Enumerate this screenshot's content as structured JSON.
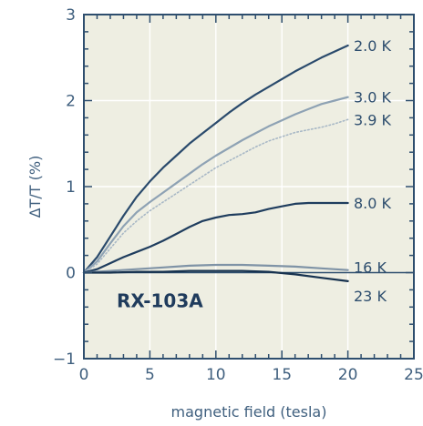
{
  "chart_data": {
    "type": "line",
    "title": "",
    "xlabel": "magnetic field (tesla)",
    "ylabel": "ΔT/T (%)",
    "xlim": [
      0,
      25
    ],
    "ylim": [
      -1,
      3
    ],
    "xticks": [
      0,
      5,
      10,
      15,
      20,
      25
    ],
    "yticks": [
      -1,
      0,
      1,
      2,
      3
    ],
    "grid": true,
    "annotation": "RX-103A",
    "colors": {
      "plot_background": "#eeeee2",
      "frame": "#2e4e6e",
      "grid": "#ffffff",
      "text": "#3f5f7e"
    },
    "series": [
      {
        "name": "2.0 K",
        "color": "#2a4a6c",
        "style": "solid",
        "x": [
          0,
          1,
          2,
          3,
          4,
          5,
          6,
          7,
          8,
          9,
          10,
          11,
          12,
          13,
          14,
          15,
          16,
          17,
          18,
          19,
          20
        ],
        "y": [
          0,
          0.18,
          0.42,
          0.66,
          0.88,
          1.06,
          1.22,
          1.36,
          1.5,
          1.62,
          1.74,
          1.86,
          1.97,
          2.07,
          2.16,
          2.25,
          2.34,
          2.42,
          2.5,
          2.57,
          2.64
        ]
      },
      {
        "name": "3.0 K",
        "color": "#8ea2b4",
        "style": "solid",
        "x": [
          0,
          1,
          2,
          3,
          4,
          5,
          6,
          7,
          8,
          9,
          10,
          11,
          12,
          13,
          14,
          15,
          16,
          17,
          18,
          19,
          20
        ],
        "y": [
          0,
          0.13,
          0.34,
          0.54,
          0.7,
          0.82,
          0.93,
          1.04,
          1.15,
          1.26,
          1.36,
          1.45,
          1.54,
          1.62,
          1.7,
          1.77,
          1.84,
          1.9,
          1.96,
          2.0,
          2.04
        ]
      },
      {
        "name": "3.9 K",
        "color": "#a8b8c6",
        "style": "dotted",
        "x": [
          0,
          1,
          2,
          3,
          4,
          5,
          6,
          7,
          8,
          9,
          10,
          11,
          12,
          13,
          14,
          15,
          16,
          17,
          18,
          19,
          20
        ],
        "y": [
          0,
          0.1,
          0.28,
          0.46,
          0.6,
          0.72,
          0.82,
          0.92,
          1.02,
          1.12,
          1.22,
          1.3,
          1.38,
          1.46,
          1.53,
          1.58,
          1.63,
          1.66,
          1.69,
          1.73,
          1.78
        ]
      },
      {
        "name": "8.0 K",
        "color": "#1f3d5e",
        "style": "solid",
        "x": [
          0,
          1,
          2,
          3,
          4,
          5,
          6,
          7,
          8,
          9,
          10,
          11,
          12,
          13,
          14,
          15,
          16,
          17,
          18,
          19,
          20
        ],
        "y": [
          0,
          0.04,
          0.11,
          0.18,
          0.24,
          0.3,
          0.37,
          0.45,
          0.53,
          0.6,
          0.64,
          0.67,
          0.68,
          0.7,
          0.74,
          0.77,
          0.8,
          0.81,
          0.81,
          0.81,
          0.81
        ]
      },
      {
        "name": "16 K",
        "color": "#7f93a6",
        "style": "solid",
        "x": [
          0,
          2,
          4,
          6,
          8,
          10,
          12,
          14,
          16,
          18,
          20
        ],
        "y": [
          0,
          0.02,
          0.04,
          0.06,
          0.08,
          0.09,
          0.09,
          0.08,
          0.07,
          0.05,
          0.03
        ]
      },
      {
        "name": "23 K",
        "color": "#17324f",
        "style": "solid",
        "x": [
          0,
          2,
          4,
          6,
          8,
          10,
          12,
          14,
          16,
          18,
          20
        ],
        "y": [
          0,
          0.0,
          0.01,
          0.01,
          0.02,
          0.02,
          0.02,
          0.01,
          -0.02,
          -0.06,
          -0.1
        ]
      }
    ]
  }
}
